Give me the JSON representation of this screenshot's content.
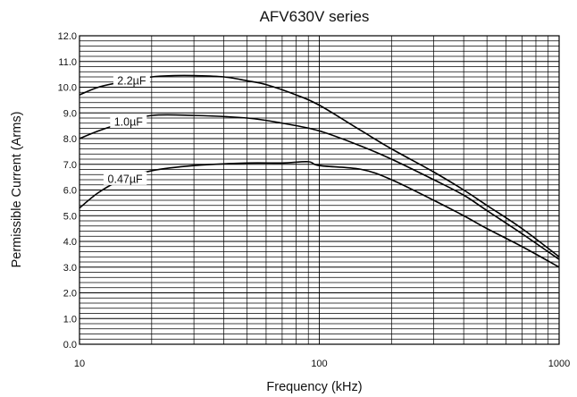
{
  "chart_data": {
    "type": "line",
    "title": "AFV630V series",
    "xlabel": "Frequency (kHz)",
    "ylabel": "Permissible Current (Arms)",
    "xscale": "log",
    "xlim": [
      10,
      1000
    ],
    "ylim": [
      0,
      12
    ],
    "x_ticks": [
      "10",
      "100",
      "1000"
    ],
    "y_ticks": [
      "0.0",
      "1.0",
      "2.0",
      "3.0",
      "4.0",
      "5.0",
      "6.0",
      "7.0",
      "8.0",
      "9.0",
      "10.0",
      "11.0",
      "12.0"
    ],
    "grid": true,
    "series": [
      {
        "name": "2.2µF",
        "x": [
          10,
          12,
          15,
          20,
          25,
          30,
          40,
          50,
          60,
          80,
          100,
          150,
          200,
          300,
          400,
          500,
          700,
          1000
        ],
        "y": [
          9.7,
          10.0,
          10.2,
          10.4,
          10.45,
          10.45,
          10.4,
          10.25,
          10.1,
          9.7,
          9.3,
          8.3,
          7.6,
          6.7,
          6.0,
          5.4,
          4.5,
          3.4
        ]
      },
      {
        "name": "1.0µF",
        "x": [
          10,
          12,
          15,
          20,
          30,
          50,
          70,
          100,
          150,
          200,
          300,
          400,
          500,
          700,
          1000
        ],
        "y": [
          8.0,
          8.3,
          8.6,
          8.9,
          8.9,
          8.8,
          8.6,
          8.3,
          7.7,
          7.2,
          6.4,
          5.8,
          5.2,
          4.3,
          3.3
        ]
      },
      {
        "name": "0.47µF",
        "x": [
          10,
          12,
          15,
          20,
          30,
          50,
          70,
          90,
          100,
          150,
          200,
          300,
          400,
          500,
          700,
          1000
        ],
        "y": [
          5.3,
          5.9,
          6.4,
          6.75,
          6.95,
          7.05,
          7.05,
          7.1,
          6.95,
          6.8,
          6.4,
          5.6,
          5.0,
          4.5,
          3.8,
          3.0
        ]
      }
    ]
  }
}
